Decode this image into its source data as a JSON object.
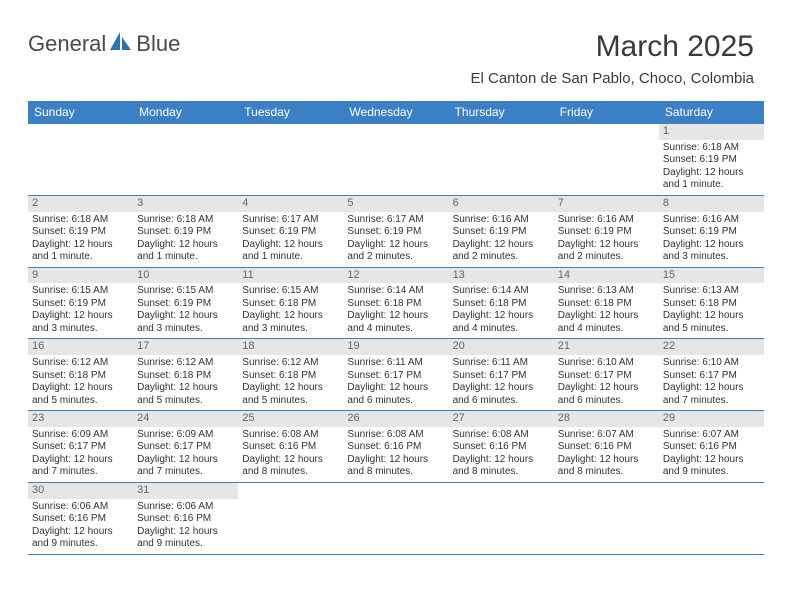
{
  "logo": {
    "text1": "General",
    "text2": "Blue"
  },
  "title": "March 2025",
  "location": "El Canton de San Pablo, Choco, Colombia",
  "colors": {
    "header_bg": "#3b7fc4",
    "header_text": "#ffffff",
    "daynum_bg": "#e6e6e6",
    "daynum_text": "#666666",
    "cell_text": "#333333",
    "border": "#3b7fc4",
    "page_bg": "#ffffff",
    "title_text": "#3a3a3a",
    "logo_text": "#4a4a4a",
    "logo_blue": "#2f6fb5"
  },
  "typography": {
    "title_fontsize": 30,
    "location_fontsize": 15,
    "dayheader_fontsize": 12,
    "daynum_fontsize": 11,
    "cell_fontsize": 10,
    "logo_fontsize": 22
  },
  "layout": {
    "calendar_width": 736,
    "columns": 7,
    "rows": 6
  },
  "day_names": [
    "Sunday",
    "Monday",
    "Tuesday",
    "Wednesday",
    "Thursday",
    "Friday",
    "Saturday"
  ],
  "weeks": [
    [
      null,
      null,
      null,
      null,
      null,
      null,
      {
        "n": "1",
        "sr": "Sunrise: 6:18 AM",
        "ss": "Sunset: 6:19 PM",
        "dl1": "Daylight: 12 hours",
        "dl2": "and 1 minute."
      }
    ],
    [
      {
        "n": "2",
        "sr": "Sunrise: 6:18 AM",
        "ss": "Sunset: 6:19 PM",
        "dl1": "Daylight: 12 hours",
        "dl2": "and 1 minute."
      },
      {
        "n": "3",
        "sr": "Sunrise: 6:18 AM",
        "ss": "Sunset: 6:19 PM",
        "dl1": "Daylight: 12 hours",
        "dl2": "and 1 minute."
      },
      {
        "n": "4",
        "sr": "Sunrise: 6:17 AM",
        "ss": "Sunset: 6:19 PM",
        "dl1": "Daylight: 12 hours",
        "dl2": "and 1 minute."
      },
      {
        "n": "5",
        "sr": "Sunrise: 6:17 AM",
        "ss": "Sunset: 6:19 PM",
        "dl1": "Daylight: 12 hours",
        "dl2": "and 2 minutes."
      },
      {
        "n": "6",
        "sr": "Sunrise: 6:16 AM",
        "ss": "Sunset: 6:19 PM",
        "dl1": "Daylight: 12 hours",
        "dl2": "and 2 minutes."
      },
      {
        "n": "7",
        "sr": "Sunrise: 6:16 AM",
        "ss": "Sunset: 6:19 PM",
        "dl1": "Daylight: 12 hours",
        "dl2": "and 2 minutes."
      },
      {
        "n": "8",
        "sr": "Sunrise: 6:16 AM",
        "ss": "Sunset: 6:19 PM",
        "dl1": "Daylight: 12 hours",
        "dl2": "and 3 minutes."
      }
    ],
    [
      {
        "n": "9",
        "sr": "Sunrise: 6:15 AM",
        "ss": "Sunset: 6:19 PM",
        "dl1": "Daylight: 12 hours",
        "dl2": "and 3 minutes."
      },
      {
        "n": "10",
        "sr": "Sunrise: 6:15 AM",
        "ss": "Sunset: 6:19 PM",
        "dl1": "Daylight: 12 hours",
        "dl2": "and 3 minutes."
      },
      {
        "n": "11",
        "sr": "Sunrise: 6:15 AM",
        "ss": "Sunset: 6:18 PM",
        "dl1": "Daylight: 12 hours",
        "dl2": "and 3 minutes."
      },
      {
        "n": "12",
        "sr": "Sunrise: 6:14 AM",
        "ss": "Sunset: 6:18 PM",
        "dl1": "Daylight: 12 hours",
        "dl2": "and 4 minutes."
      },
      {
        "n": "13",
        "sr": "Sunrise: 6:14 AM",
        "ss": "Sunset: 6:18 PM",
        "dl1": "Daylight: 12 hours",
        "dl2": "and 4 minutes."
      },
      {
        "n": "14",
        "sr": "Sunrise: 6:13 AM",
        "ss": "Sunset: 6:18 PM",
        "dl1": "Daylight: 12 hours",
        "dl2": "and 4 minutes."
      },
      {
        "n": "15",
        "sr": "Sunrise: 6:13 AM",
        "ss": "Sunset: 6:18 PM",
        "dl1": "Daylight: 12 hours",
        "dl2": "and 5 minutes."
      }
    ],
    [
      {
        "n": "16",
        "sr": "Sunrise: 6:12 AM",
        "ss": "Sunset: 6:18 PM",
        "dl1": "Daylight: 12 hours",
        "dl2": "and 5 minutes."
      },
      {
        "n": "17",
        "sr": "Sunrise: 6:12 AM",
        "ss": "Sunset: 6:18 PM",
        "dl1": "Daylight: 12 hours",
        "dl2": "and 5 minutes."
      },
      {
        "n": "18",
        "sr": "Sunrise: 6:12 AM",
        "ss": "Sunset: 6:18 PM",
        "dl1": "Daylight: 12 hours",
        "dl2": "and 5 minutes."
      },
      {
        "n": "19",
        "sr": "Sunrise: 6:11 AM",
        "ss": "Sunset: 6:17 PM",
        "dl1": "Daylight: 12 hours",
        "dl2": "and 6 minutes."
      },
      {
        "n": "20",
        "sr": "Sunrise: 6:11 AM",
        "ss": "Sunset: 6:17 PM",
        "dl1": "Daylight: 12 hours",
        "dl2": "and 6 minutes."
      },
      {
        "n": "21",
        "sr": "Sunrise: 6:10 AM",
        "ss": "Sunset: 6:17 PM",
        "dl1": "Daylight: 12 hours",
        "dl2": "and 6 minutes."
      },
      {
        "n": "22",
        "sr": "Sunrise: 6:10 AM",
        "ss": "Sunset: 6:17 PM",
        "dl1": "Daylight: 12 hours",
        "dl2": "and 7 minutes."
      }
    ],
    [
      {
        "n": "23",
        "sr": "Sunrise: 6:09 AM",
        "ss": "Sunset: 6:17 PM",
        "dl1": "Daylight: 12 hours",
        "dl2": "and 7 minutes."
      },
      {
        "n": "24",
        "sr": "Sunrise: 6:09 AM",
        "ss": "Sunset: 6:17 PM",
        "dl1": "Daylight: 12 hours",
        "dl2": "and 7 minutes."
      },
      {
        "n": "25",
        "sr": "Sunrise: 6:08 AM",
        "ss": "Sunset: 6:16 PM",
        "dl1": "Daylight: 12 hours",
        "dl2": "and 8 minutes."
      },
      {
        "n": "26",
        "sr": "Sunrise: 6:08 AM",
        "ss": "Sunset: 6:16 PM",
        "dl1": "Daylight: 12 hours",
        "dl2": "and 8 minutes."
      },
      {
        "n": "27",
        "sr": "Sunrise: 6:08 AM",
        "ss": "Sunset: 6:16 PM",
        "dl1": "Daylight: 12 hours",
        "dl2": "and 8 minutes."
      },
      {
        "n": "28",
        "sr": "Sunrise: 6:07 AM",
        "ss": "Sunset: 6:16 PM",
        "dl1": "Daylight: 12 hours",
        "dl2": "and 8 minutes."
      },
      {
        "n": "29",
        "sr": "Sunrise: 6:07 AM",
        "ss": "Sunset: 6:16 PM",
        "dl1": "Daylight: 12 hours",
        "dl2": "and 9 minutes."
      }
    ],
    [
      {
        "n": "30",
        "sr": "Sunrise: 6:06 AM",
        "ss": "Sunset: 6:16 PM",
        "dl1": "Daylight: 12 hours",
        "dl2": "and 9 minutes."
      },
      {
        "n": "31",
        "sr": "Sunrise: 6:06 AM",
        "ss": "Sunset: 6:16 PM",
        "dl1": "Daylight: 12 hours",
        "dl2": "and 9 minutes."
      },
      null,
      null,
      null,
      null,
      null
    ]
  ]
}
